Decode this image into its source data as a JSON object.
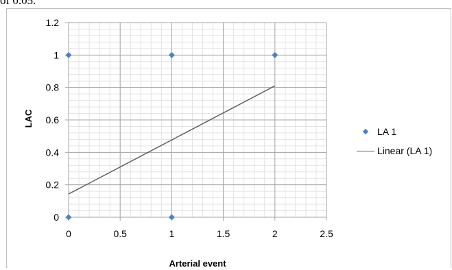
{
  "header_text": "of 0.05.",
  "chart_data": {
    "type": "scatter",
    "title": "",
    "xlabel": "Arterial event",
    "ylabel": "LAC",
    "xlim": [
      0,
      2.5
    ],
    "ylim": [
      0,
      1.2
    ],
    "xticks": [
      "0",
      "0.5",
      "1",
      "1.5",
      "2",
      "2.5"
    ],
    "yticks": [
      "0",
      "0.2",
      "0.4",
      "0.6",
      "0.8",
      "1",
      "1.2"
    ],
    "grid": true,
    "legend_position": "right",
    "series": [
      {
        "name": "LA 1",
        "kind": "marker",
        "marker": "diamond",
        "color": "#4f81bd",
        "points": [
          [
            0,
            1
          ],
          [
            1,
            1
          ],
          [
            2,
            1
          ],
          [
            0,
            0
          ],
          [
            1,
            0
          ]
        ]
      },
      {
        "name": "Linear (LA 1)",
        "kind": "trendline",
        "color": "#595959",
        "points": [
          [
            0,
            0.143
          ],
          [
            2,
            0.81
          ]
        ]
      }
    ]
  }
}
